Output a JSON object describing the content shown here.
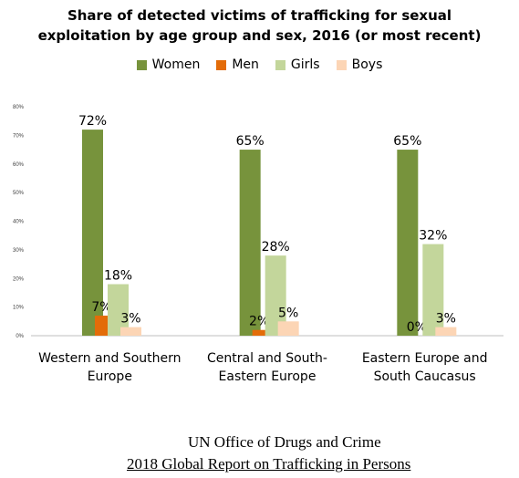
{
  "chart_data": {
    "type": "bar",
    "title": [
      "Share of detected victims of trafficking for sexual",
      "exploitation by age group and sex, 2016 (or most recent)"
    ],
    "legend_placement": "top",
    "grid": false,
    "ylim": [
      0,
      80
    ],
    "yticks": [
      "0%",
      "10%",
      "20%",
      "30%",
      "40%",
      "50%",
      "60%",
      "70%",
      "80%"
    ],
    "categories": [
      [
        "Western and Southern",
        "Europe"
      ],
      [
        "Central and South-",
        "Eastern Europe"
      ],
      [
        "Eastern Europe and",
        "South Caucasus"
      ]
    ],
    "series": [
      {
        "name": "Women",
        "color": "#77933c",
        "values": [
          72,
          65,
          65
        ],
        "labels": [
          "72%",
          "65%",
          "65%"
        ]
      },
      {
        "name": "Men",
        "color": "#e36c09",
        "values": [
          7,
          2,
          0
        ],
        "labels": [
          "7%",
          "2%",
          "0%"
        ]
      },
      {
        "name": "Girls",
        "color": "#c3d69b",
        "values": [
          18,
          28,
          32
        ],
        "labels": [
          "18%",
          "28%",
          "32%"
        ]
      },
      {
        "name": "Boys",
        "color": "#fcd5b5",
        "values": [
          3,
          5,
          3
        ],
        "labels": [
          "3%",
          "5%",
          "3%"
        ]
      }
    ]
  },
  "source": {
    "organization": "UN Office of Drugs and Crime",
    "report": "2018 Global Report on Trafficking in Persons"
  }
}
